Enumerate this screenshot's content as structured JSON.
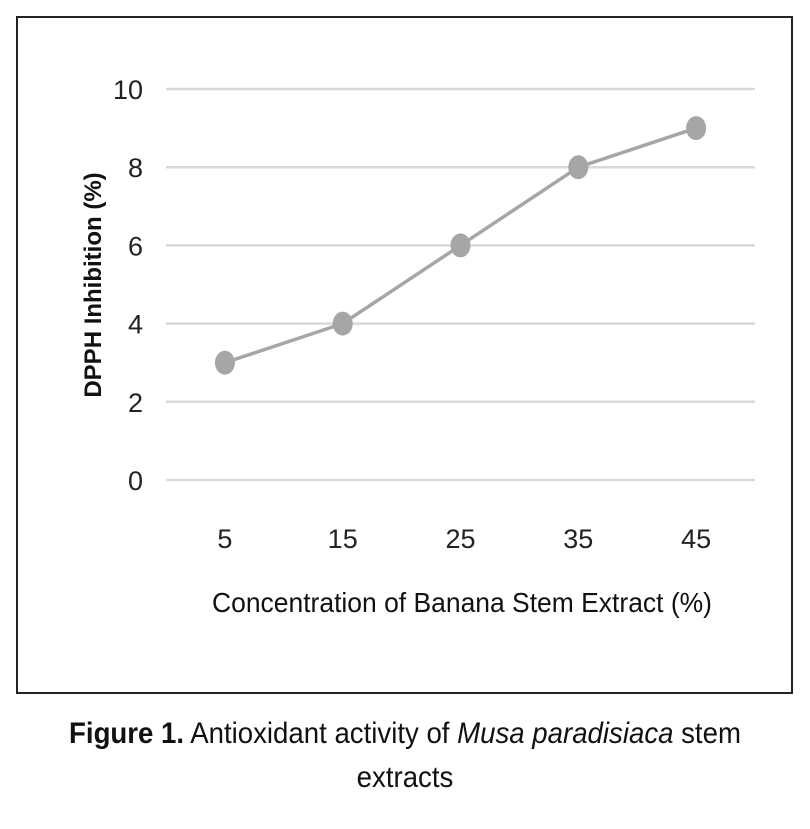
{
  "chart_data": {
    "type": "line",
    "categories": [
      "5",
      "15",
      "25",
      "35",
      "45"
    ],
    "series": [
      {
        "name": "DPPH Inhibition",
        "values": [
          3,
          4,
          6,
          8,
          9
        ],
        "color": "#a6a6a6"
      }
    ],
    "xlabel": "Concentration of Banana Stem Extract (%)",
    "ylabel": "DPPH Inhibition (%)",
    "ylim": [
      0,
      10
    ],
    "yticks": [
      "0",
      "2",
      "4",
      "6",
      "8",
      "10"
    ],
    "grid": true,
    "gridColor": "#d9d9d9"
  },
  "caption": {
    "label": "Figure 1.",
    "text_before": " Antioxidant activity of ",
    "italic": "Musa paradisiaca",
    "text_after": " stem extracts"
  }
}
